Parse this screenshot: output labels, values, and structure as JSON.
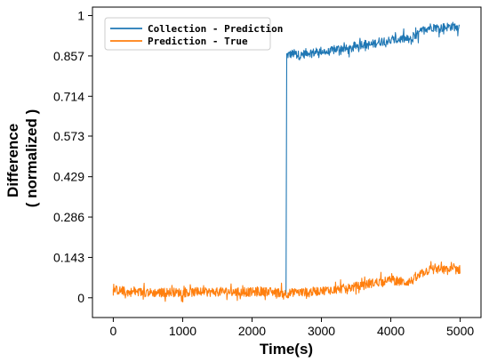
{
  "chart_data": {
    "type": "line",
    "title": "",
    "xlabel": "Time(s)",
    "ylabel_line1": "Difference",
    "ylabel_line2": "( normalized )",
    "xlim": [
      -300,
      5300
    ],
    "ylim": [
      -0.07,
      1.03
    ],
    "xticks": [
      0,
      1000,
      2000,
      3000,
      4000,
      5000
    ],
    "xtick_labels": [
      "0",
      "1000",
      "2000",
      "3000",
      "4000",
      "5000"
    ],
    "yticks": [
      0,
      0.143,
      0.286,
      0.429,
      0.573,
      0.714,
      0.857,
      1
    ],
    "ytick_labels": [
      "0",
      "0.143",
      "0.286",
      "0.429",
      "0.573",
      "0.714",
      "0.857",
      "1"
    ],
    "grid": false,
    "legend_position": "top-left",
    "series": [
      {
        "name": "Collection - Prediction",
        "color": "#1f77b4",
        "x": [
          2490,
          2500,
          2600,
          2700,
          2800,
          2900,
          3000,
          3100,
          3200,
          3300,
          3400,
          3500,
          3600,
          3700,
          3800,
          3900,
          4000,
          4100,
          4200,
          4300,
          4400,
          4500,
          4600,
          4700,
          4800,
          4900,
          4990
        ],
        "y": [
          0.012,
          0.86,
          0.865,
          0.858,
          0.87,
          0.868,
          0.875,
          0.87,
          0.88,
          0.885,
          0.878,
          0.892,
          0.9,
          0.895,
          0.905,
          0.912,
          0.91,
          0.915,
          0.918,
          0.912,
          0.935,
          0.955,
          0.96,
          0.955,
          0.96,
          0.962,
          0.958
        ],
        "noise": 0.016
      },
      {
        "name": "Prediction - True",
        "color": "#ff7f0e",
        "x": [
          0,
          100,
          200,
          400,
          600,
          800,
          1000,
          1200,
          1400,
          1600,
          1800,
          2000,
          2200,
          2400,
          2500,
          2600,
          2800,
          3000,
          3200,
          3400,
          3600,
          3800,
          4000,
          4100,
          4200,
          4300,
          4400,
          4500,
          4600,
          4700,
          4800,
          4900,
          5000
        ],
        "y": [
          0.03,
          0.025,
          0.02,
          0.02,
          0.018,
          0.02,
          0.018,
          0.02,
          0.02,
          0.022,
          0.02,
          0.02,
          0.022,
          0.018,
          0.015,
          0.018,
          0.02,
          0.025,
          0.03,
          0.035,
          0.045,
          0.055,
          0.062,
          0.06,
          0.055,
          0.06,
          0.075,
          0.095,
          0.1,
          0.1,
          0.098,
          0.1,
          0.1
        ],
        "noise": 0.016
      }
    ]
  }
}
